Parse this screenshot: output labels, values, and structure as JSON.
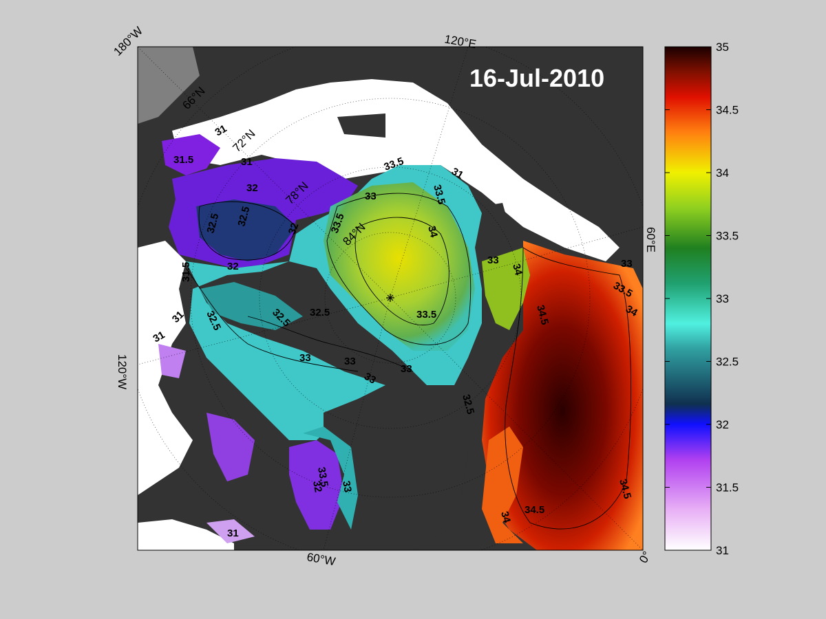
{
  "map": {
    "date": "16-Jul-2010",
    "longitude_labels": {
      "w180": "180°W",
      "e120": "120°E",
      "e60": "60°E",
      "w120": "120°W",
      "w60": "60°W",
      "zero": "0°"
    },
    "latitude_labels": {
      "n66": "66°N",
      "n72": "72°N",
      "n78": "78°N",
      "n84": "84°N"
    },
    "contour_labels": [
      "31",
      "31.5",
      "32",
      "32.5",
      "33",
      "33.5",
      "34",
      "34.5"
    ],
    "colors": {
      "land": "#333333",
      "ice": "#ffffff",
      "background": "#cccccc"
    }
  },
  "colorbar": {
    "min": 31,
    "max": 35,
    "ticks": [
      "35",
      "34.5",
      "34",
      "33.5",
      "33",
      "32.5",
      "32",
      "31.5",
      "31"
    ],
    "stops": [
      "#ffffff",
      "#e0a0f0",
      "#a020f0",
      "#0000ff",
      "#008080",
      "#40e0d0",
      "#008000",
      "#9acd32",
      "#ffff00",
      "#ff8c00",
      "#ff0000",
      "#8b0000",
      "#1a0000"
    ]
  }
}
